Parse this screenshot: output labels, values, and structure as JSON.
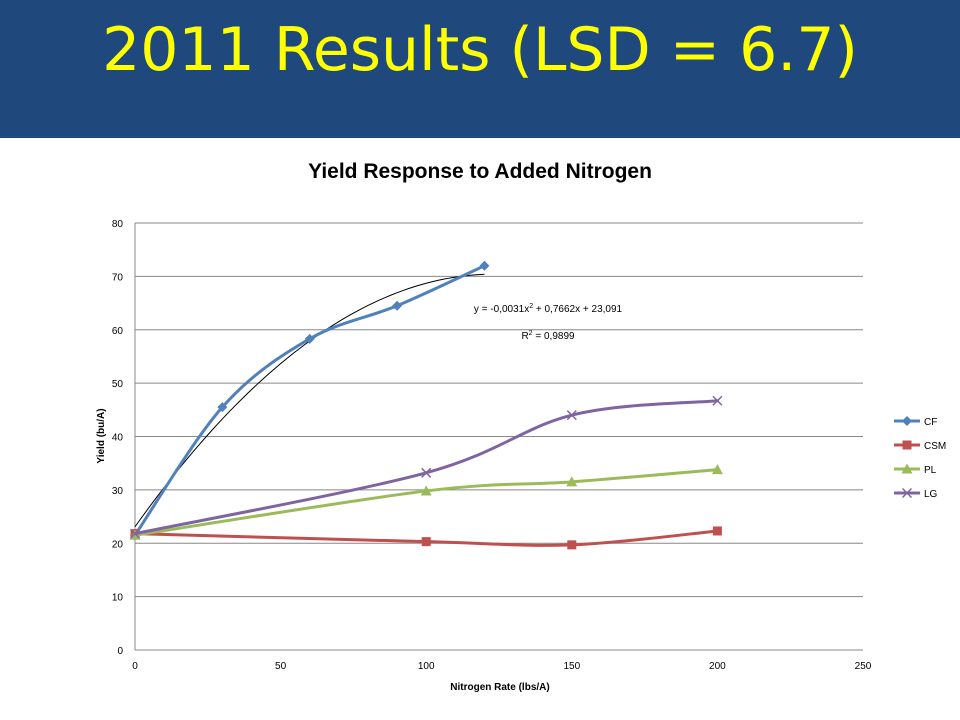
{
  "slide": {
    "title": "2011 Results (LSD = 6.7)"
  },
  "colors": {
    "header_bg": "#1f497d",
    "title": "#ffff00"
  },
  "chart_data": {
    "type": "line",
    "title": "Yield Response to Added Nitrogen",
    "xlabel": "Nitrogen Rate (lbs/A)",
    "ylabel": "Yield (bu/A)",
    "xlim": [
      0,
      250
    ],
    "ylim": [
      0,
      80
    ],
    "xticks": [
      0,
      50,
      100,
      150,
      200,
      250
    ],
    "yticks": [
      0,
      10,
      20,
      30,
      40,
      50,
      60,
      70,
      80
    ],
    "grid": "horizontal",
    "legend_position": "right",
    "series": [
      {
        "name": "CF",
        "color": "#4f81bd",
        "marker": "diamond",
        "x": [
          0,
          30,
          60,
          90,
          120
        ],
        "y": [
          21.5,
          45.5,
          58.3,
          64.5,
          72
        ]
      },
      {
        "name": "CSM",
        "color": "#c0504d",
        "marker": "square",
        "x": [
          0,
          100,
          150,
          200
        ],
        "y": [
          21.8,
          20.3,
          19.7,
          22.3
        ]
      },
      {
        "name": "PL",
        "color": "#9bbb59",
        "marker": "triangle",
        "x": [
          0,
          100,
          150,
          200
        ],
        "y": [
          21.5,
          29.8,
          31.5,
          33.8
        ]
      },
      {
        "name": "LG",
        "color": "#8064a2",
        "marker": "x",
        "x": [
          0,
          100,
          150,
          200
        ],
        "y": [
          21.8,
          33.2,
          44,
          46.7
        ]
      }
    ],
    "trendline": {
      "series": "CF",
      "type": "polynomial",
      "coefficients": [
        -0.0031,
        0.7662,
        23.091
      ],
      "x_range": [
        0,
        120
      ],
      "equation_base": "y = -0,0031x",
      "equation_sup": "2",
      "equation_rest": " + 0,7662x + 23,091",
      "r2_base": "R",
      "r2_sup": "2",
      "r2_rest": " = 0,9899"
    }
  }
}
